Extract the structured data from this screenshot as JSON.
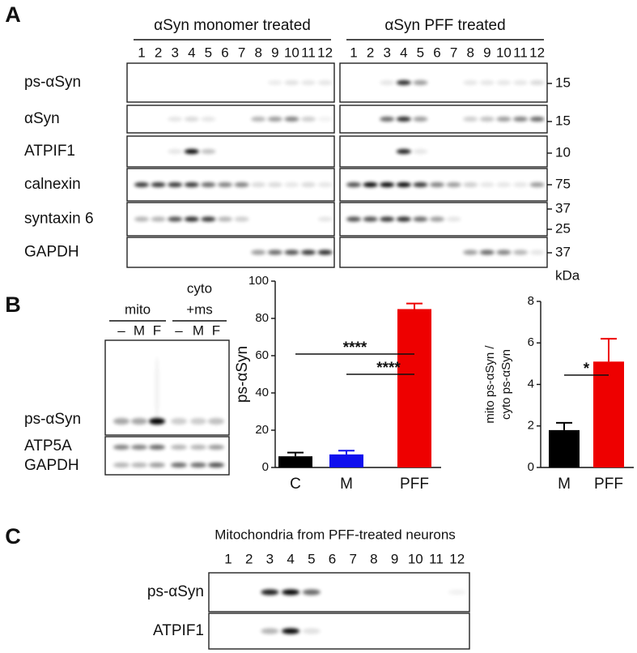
{
  "panel_a": {
    "label": "A",
    "groups": [
      "αSyn monomer treated",
      "αSyn PFF treated"
    ],
    "lanes": [
      1,
      2,
      3,
      4,
      5,
      6,
      7,
      8,
      9,
      10,
      11,
      12
    ],
    "rows": [
      {
        "name": "ps-αSyn",
        "markers": [
          15
        ]
      },
      {
        "name": "αSyn",
        "markers": [
          15
        ]
      },
      {
        "name": "ATPIF1",
        "markers": [
          10
        ]
      },
      {
        "name": "calnexin",
        "markers": [
          75
        ]
      },
      {
        "name": "syntaxin 6",
        "markers": [
          37,
          25
        ]
      },
      {
        "name": "GAPDH",
        "markers": [
          37
        ]
      }
    ],
    "unit": "kDa"
  },
  "panel_b": {
    "label": "B",
    "groups": [
      [
        "mito"
      ],
      [
        "cyto",
        "+ms"
      ]
    ],
    "lanes": [
      "–",
      "M",
      "F",
      "–",
      "M",
      "F"
    ],
    "rows": [
      "ps-αSyn",
      "ATP5A",
      "GAPDH"
    ]
  },
  "panel_c": {
    "label": "C",
    "title": "Mitochondria from PFF-treated neurons",
    "lanes": [
      1,
      2,
      3,
      4,
      5,
      6,
      7,
      8,
      9,
      10,
      11,
      12
    ],
    "rows": [
      "ps-αSyn",
      "ATPIF1"
    ]
  },
  "chart_data": [
    {
      "type": "bar",
      "ylabel": [
        "ps-αSyn"
      ],
      "categories": [
        "C",
        "M",
        "PFF"
      ],
      "values": [
        6,
        7,
        85
      ],
      "errors": [
        2,
        2,
        3
      ],
      "colors": [
        "#000000",
        "#1010ee",
        "#ee0000"
      ],
      "ylim": [
        0,
        100
      ],
      "yticks": [
        0,
        20,
        40,
        60,
        80,
        100
      ],
      "annotations": [
        "****",
        "****"
      ]
    },
    {
      "type": "bar",
      "ylabel": [
        "mito ps-αSyn /",
        "cyto ps-αSyn"
      ],
      "categories": [
        "M",
        "PFF"
      ],
      "values": [
        1.8,
        5.1
      ],
      "errors": [
        0.35,
        1.1
      ],
      "colors": [
        "#000000",
        "#ee0000"
      ],
      "ylim": [
        0,
        8
      ],
      "yticks": [
        0,
        2,
        4,
        6,
        8
      ],
      "annotations": [
        "*"
      ]
    }
  ]
}
